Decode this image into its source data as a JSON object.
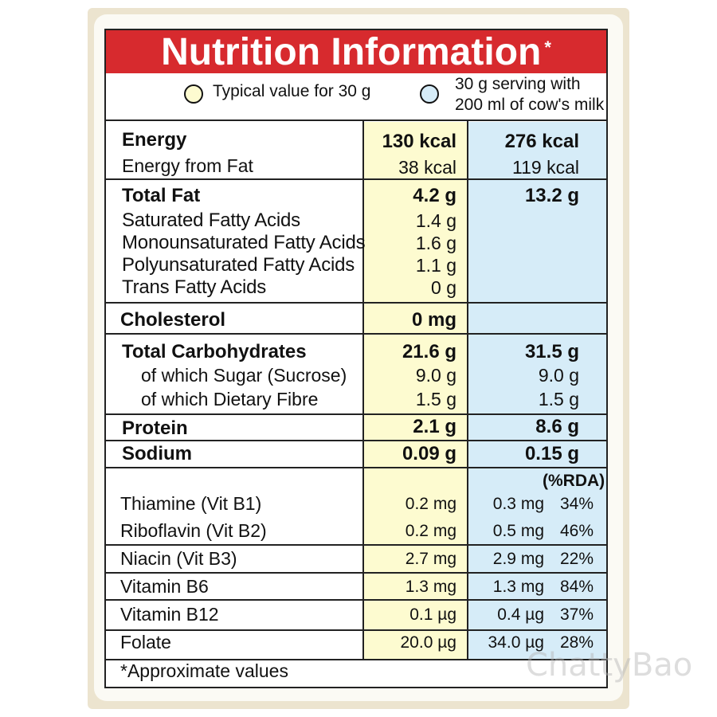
{
  "title": "Nutrition Information",
  "title_mark": "*",
  "legend": {
    "typical": "Typical value for 30 g",
    "serving_line1": "30 g serving with",
    "serving_line2": "200 ml of cow's milk",
    "typical_color": "#fdfbd0",
    "serving_color": "#d6ecf8"
  },
  "energy": {
    "label": "Energy",
    "typical": "130 kcal",
    "serving": "276 kcal",
    "fat_label": "Energy from Fat",
    "fat_typical": "38 kcal",
    "fat_serving": "119 kcal"
  },
  "fat": {
    "label": "Total Fat",
    "typical": "4.2 g",
    "serving": "13.2 g",
    "items": [
      {
        "label": "Saturated Fatty Acids",
        "typical": "1.4 g"
      },
      {
        "label": "Monounsaturated Fatty Acids",
        "typical": "1.6 g"
      },
      {
        "label": "Polyunsaturated Fatty Acids",
        "typical": "1.1 g"
      },
      {
        "label": "Trans Fatty Acids",
        "typical": "0 g"
      }
    ]
  },
  "cholesterol": {
    "label": "Cholesterol",
    "typical": "0 mg"
  },
  "carbs": {
    "label": "Total Carbohydrates",
    "typical": "21.6 g",
    "serving": "31.5 g",
    "sugar_label": "of which Sugar (Sucrose)",
    "sugar_typical": "9.0 g",
    "sugar_serving": "9.0 g",
    "fibre_label": "of which Dietary Fibre",
    "fibre_typical": "1.5 g",
    "fibre_serving": "1.5 g"
  },
  "protein": {
    "label": "Protein",
    "typical": "2.1 g",
    "serving": "8.6 g"
  },
  "sodium": {
    "label": "Sodium",
    "typical": "0.09 g",
    "serving": "0.15 g"
  },
  "rda_header": "(%RDA)",
  "vitamins": [
    {
      "label": "Thiamine (Vit B1)",
      "typical": "0.2 mg",
      "serving": "0.3 mg",
      "rda": "34%"
    },
    {
      "label": "Riboflavin (Vit B2)",
      "typical": "0.2 mg",
      "serving": "0.5 mg",
      "rda": "46%"
    },
    {
      "label": "Niacin (Vit B3)",
      "typical": "2.7 mg",
      "serving": "2.9 mg",
      "rda": "22%"
    },
    {
      "label": "Vitamin B6",
      "typical": "1.3 mg",
      "serving": "1.3 mg",
      "rda": "84%"
    },
    {
      "label": "Vitamin B12",
      "typical": "0.1 µg",
      "serving": "0.4 µg",
      "rda": "37%"
    },
    {
      "label": "Folate",
      "typical": "20.0 µg",
      "serving": "34.0 µg",
      "rda": "28%"
    }
  ],
  "footnote": "*Approximate values",
  "watermark": "ChattyBao"
}
